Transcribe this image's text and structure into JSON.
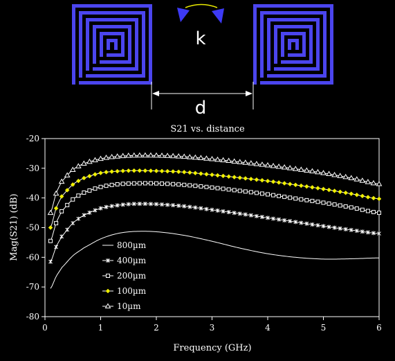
{
  "diagram": {
    "coupling_label": "k",
    "distance_label": "d",
    "coil_color": "#4b45ee",
    "arrow_color": "#3d3af5",
    "arc_color": "#e9e900"
  },
  "chart_data": {
    "type": "line",
    "title": "S21 vs. distance",
    "xlabel": "Frequency (GHz)",
    "ylabel": "Mag(S21) (dB)",
    "xlim": [
      0,
      6
    ],
    "ylim": [
      -80,
      -20
    ],
    "xticks": [
      "0",
      "1",
      "2",
      "3",
      "4",
      "5",
      "6"
    ],
    "yticks": [
      "-20",
      "-30",
      "-40",
      "-50",
      "-60",
      "-70",
      "-80"
    ],
    "grid": false,
    "legend_position": "bottom-left inside",
    "x": [
      0.1,
      0.2,
      0.3,
      0.5,
      0.7,
      1.0,
      1.3,
      1.6,
      2.0,
      2.5,
      3.0,
      3.5,
      4.0,
      4.5,
      5.0,
      5.5,
      6.0
    ],
    "series": [
      {
        "name": "800µm",
        "marker": "none",
        "color": "#ffffff",
        "values": [
          -70.5,
          -66.5,
          -63.5,
          -59.5,
          -56.8,
          -53.8,
          -52.0,
          -51.3,
          -51.4,
          -52.6,
          -54.6,
          -56.9,
          -58.8,
          -60.0,
          -60.6,
          -60.5,
          -60.2
        ]
      },
      {
        "name": "400µm",
        "marker": "cross",
        "color": "#ffffff",
        "values": [
          -61.5,
          -56.5,
          -53.0,
          -48.5,
          -45.8,
          -43.5,
          -42.5,
          -42.0,
          -42.1,
          -42.8,
          -44.0,
          -45.3,
          -46.7,
          -48.1,
          -49.5,
          -50.8,
          -52.0
        ]
      },
      {
        "name": "200µm",
        "marker": "square",
        "color": "#ffffff",
        "values": [
          -54.5,
          -48.5,
          -44.5,
          -40.5,
          -38.2,
          -36.3,
          -35.4,
          -35.1,
          -35.1,
          -35.6,
          -36.5,
          -37.6,
          -38.8,
          -40.2,
          -41.6,
          -43.2,
          -45.0
        ]
      },
      {
        "name": "100µm",
        "marker": "diamond",
        "color": "#ffffff",
        "values": [
          -50.0,
          -43.5,
          -39.5,
          -35.5,
          -33.3,
          -31.6,
          -31.0,
          -30.8,
          -30.9,
          -31.3,
          -32.2,
          -33.2,
          -34.3,
          -35.6,
          -37.0,
          -38.6,
          -40.3
        ]
      },
      {
        "name": "10µm",
        "marker": "triangle",
        "color": "#ffffff",
        "values": [
          -45.0,
          -38.5,
          -34.5,
          -30.5,
          -28.4,
          -26.8,
          -26.0,
          -25.7,
          -25.7,
          -26.1,
          -26.9,
          -27.9,
          -29.0,
          -30.2,
          -31.6,
          -33.3,
          -35.3
        ]
      }
    ]
  }
}
